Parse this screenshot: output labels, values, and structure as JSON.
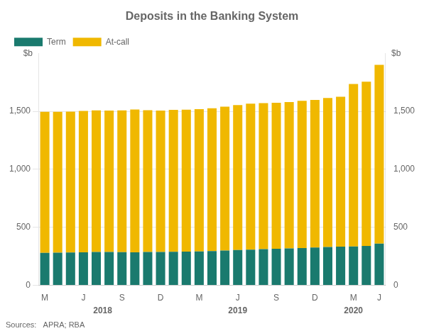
{
  "chart_data": {
    "type": "bar",
    "title": "Deposits in the Banking System",
    "ylabel": "$b",
    "y2label": "$b",
    "source": "Sources:   APRA; RBA",
    "categories": [
      "M",
      null,
      null,
      "J",
      null,
      null,
      "S",
      null,
      null,
      "D",
      null,
      null,
      "M",
      null,
      null,
      "J",
      null,
      null,
      "S",
      null,
      null,
      "D",
      null,
      null,
      "M",
      null,
      "J"
    ],
    "series": [
      {
        "name": "Term",
        "color": "#1a7a6e",
        "values": [
          280,
          282,
          283,
          285,
          288,
          287,
          286,
          285,
          287,
          287,
          290,
          291,
          293,
          296,
          300,
          305,
          308,
          312,
          315,
          318,
          322,
          326,
          330,
          333,
          335,
          340,
          360
        ]
      },
      {
        "name": "At-call",
        "color": "#f0b800",
        "values": [
          1215,
          1213,
          1215,
          1218,
          1220,
          1220,
          1222,
          1230,
          1222,
          1220,
          1222,
          1223,
          1225,
          1230,
          1240,
          1248,
          1258,
          1258,
          1258,
          1262,
          1268,
          1272,
          1285,
          1292,
          1400,
          1415,
          1540
        ]
      }
    ],
    "stacked": true,
    "ylim": [
      0,
      2000
    ],
    "yticks": [
      0,
      500,
      {
        "value": 1000,
        "label": "1,000"
      },
      {
        "value": 1500,
        "label": "1,500"
      }
    ],
    "y2lim": [
      0,
      2000
    ],
    "y2ticks": [
      0,
      500,
      {
        "value": 1000,
        "label": "1,000"
      },
      {
        "value": 1500,
        "label": "1,500"
      }
    ],
    "grid": true,
    "legend": "upper left",
    "annotations": [
      {
        "text": "2018",
        "x": 4.5
      },
      {
        "text": "2019",
        "x": 15
      },
      {
        "text": "2020",
        "x": 24
      }
    ]
  }
}
